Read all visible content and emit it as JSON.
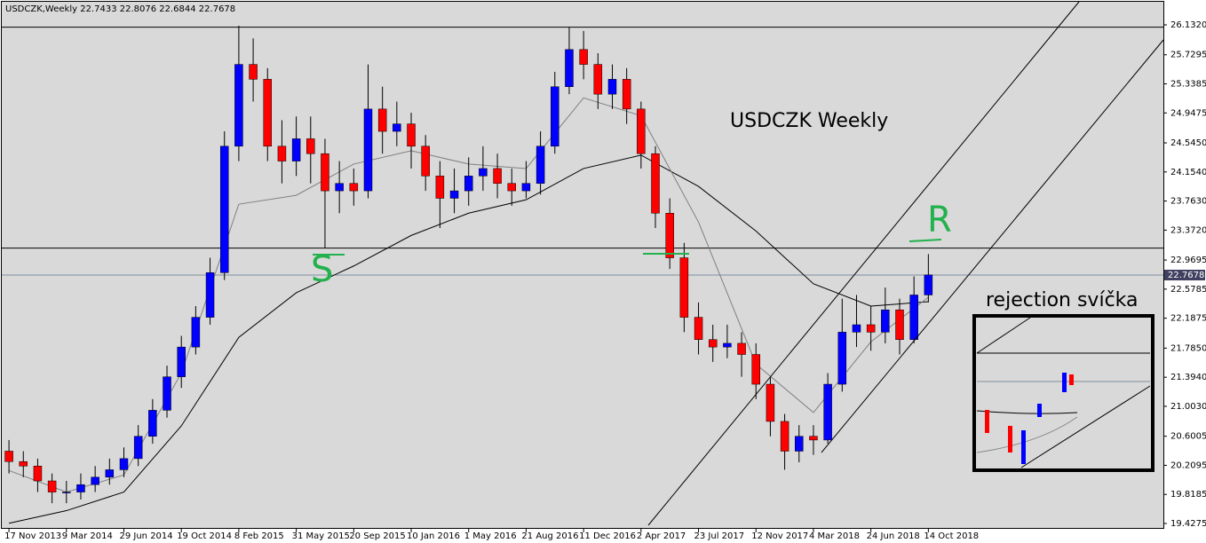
{
  "chart_data": {
    "type": "candlestick",
    "header": "USDCZK,Weekly  22.7433 22.8076 22.6844 22.7678",
    "title": "USDCZK Weekly",
    "annotations": {
      "support": "S",
      "resistance": "R",
      "inset": "rejection svíčka"
    },
    "open": [
      20.4,
      20.26,
      20.2,
      20.0,
      19.85,
      19.85,
      19.95,
      20.05,
      20.15,
      20.3,
      20.6,
      20.95,
      21.4,
      21.8,
      22.2,
      22.8,
      24.5,
      25.6,
      25.4,
      24.5,
      24.3,
      24.6,
      24.4,
      23.9,
      24.0,
      23.9,
      25.0,
      24.7,
      24.8,
      24.5,
      24.1,
      23.8,
      23.9,
      24.1,
      24.2,
      24.0,
      23.9,
      24.0,
      24.5,
      25.3,
      25.8,
      25.6,
      25.2,
      25.4,
      25.0,
      24.4,
      23.6,
      23.0,
      22.2,
      21.9,
      21.8,
      21.85,
      21.7,
      21.3,
      20.8,
      20.4,
      20.6,
      20.55,
      21.3,
      22.0,
      22.1,
      22.0,
      22.3,
      21.9,
      22.5
    ],
    "high": [
      20.55,
      20.4,
      20.3,
      20.1,
      20.0,
      20.1,
      20.2,
      20.3,
      20.45,
      20.75,
      21.1,
      21.55,
      21.95,
      22.35,
      23.0,
      24.7,
      26.12,
      25.95,
      25.55,
      24.85,
      24.9,
      24.9,
      24.6,
      24.3,
      24.2,
      25.6,
      25.3,
      25.1,
      24.95,
      24.65,
      24.3,
      24.2,
      24.35,
      24.5,
      24.4,
      24.2,
      24.3,
      24.7,
      25.5,
      26.1,
      26.05,
      25.75,
      25.6,
      25.55,
      25.1,
      24.5,
      23.8,
      23.2,
      22.4,
      22.1,
      22.1,
      22.0,
      21.85,
      21.4,
      20.9,
      20.75,
      20.75,
      21.45,
      22.45,
      22.5,
      22.35,
      22.6,
      22.45,
      22.75,
      23.05
    ],
    "low": [
      20.1,
      20.05,
      19.85,
      19.7,
      19.7,
      19.75,
      19.85,
      19.95,
      20.05,
      20.2,
      20.5,
      20.85,
      21.25,
      21.7,
      22.1,
      22.7,
      24.3,
      25.1,
      24.3,
      24.0,
      24.1,
      24.0,
      23.13,
      23.6,
      23.7,
      23.8,
      24.4,
      24.5,
      24.2,
      23.9,
      23.4,
      23.6,
      23.7,
      23.9,
      23.8,
      23.7,
      23.8,
      23.85,
      24.4,
      25.2,
      25.4,
      25.0,
      25.0,
      24.8,
      24.2,
      23.4,
      22.85,
      22.0,
      21.7,
      21.6,
      21.65,
      21.4,
      21.1,
      20.6,
      20.15,
      20.25,
      20.35,
      20.5,
      21.2,
      21.8,
      21.75,
      21.85,
      21.7,
      21.85,
      22.4
    ],
    "close": [
      20.26,
      20.2,
      20.0,
      19.85,
      19.85,
      19.95,
      20.05,
      20.15,
      20.3,
      20.6,
      20.95,
      21.4,
      21.8,
      22.2,
      22.8,
      24.5,
      25.6,
      25.4,
      24.5,
      24.3,
      24.6,
      24.4,
      23.9,
      24.0,
      23.9,
      25.0,
      24.7,
      24.8,
      24.5,
      24.1,
      23.8,
      23.9,
      24.1,
      24.2,
      24.0,
      23.9,
      24.0,
      24.5,
      25.3,
      25.8,
      25.6,
      25.2,
      25.4,
      25.0,
      24.4,
      23.6,
      23.0,
      22.2,
      21.9,
      21.8,
      21.85,
      21.7,
      21.3,
      20.8,
      20.4,
      20.6,
      20.55,
      21.3,
      22.0,
      22.1,
      22.0,
      22.3,
      21.9,
      22.5,
      22.77
    ],
    "up_color": "#0000ff",
    "down_color": "#ff0000",
    "overlays": [
      {
        "color": "#000000",
        "x": [
          0,
          4,
          8,
          12,
          16,
          20,
          24,
          28,
          32,
          36,
          40,
          44,
          48,
          52,
          56,
          60,
          64
        ],
        "values": [
          19.43,
          19.6,
          19.85,
          20.74,
          21.93,
          22.53,
          22.89,
          23.3,
          23.6,
          23.78,
          24.2,
          24.38,
          23.96,
          23.36,
          22.65,
          22.35,
          22.41
        ]
      },
      {
        "color": "#808080",
        "x": [
          0,
          4,
          8,
          12,
          16,
          20,
          24,
          28,
          32,
          36,
          40,
          44,
          48,
          52,
          56,
          60,
          64
        ],
        "values": [
          20.14,
          19.85,
          20.08,
          21.45,
          23.72,
          23.84,
          24.26,
          24.44,
          24.26,
          24.2,
          25.15,
          24.91,
          23.48,
          21.57,
          20.92,
          21.87,
          22.47
        ]
      }
    ],
    "hlines": [
      26.1,
      23.13
    ],
    "price": 22.7678,
    "xlim": [
      -0.5,
      80.36
    ],
    "ylim": [
      19.356,
      26.466
    ],
    "xticks": [
      {
        "value": 0,
        "label": "17 Nov 2013"
      },
      {
        "value": 4,
        "label": "9 Mar 2014"
      },
      {
        "value": 8,
        "label": "29 Jun 2014"
      },
      {
        "value": 12,
        "label": "19 Oct 2014"
      },
      {
        "value": 16,
        "label": "8 Feb 2015"
      },
      {
        "value": 20,
        "label": "31 May 2015"
      },
      {
        "value": 24,
        "label": "20 Sep 2015"
      },
      {
        "value": 28,
        "label": "10 Jan 2016"
      },
      {
        "value": 32,
        "label": "1 May 2016"
      },
      {
        "value": 36,
        "label": "21 Aug 2016"
      },
      {
        "value": 40,
        "label": "11 Dec 2016"
      },
      {
        "value": 44,
        "label": "2 Apr 2017"
      },
      {
        "value": 48,
        "label": "23 Jul 2017"
      },
      {
        "value": 52,
        "label": "12 Nov 2017"
      },
      {
        "value": 56,
        "label": "4 Mar 2018"
      },
      {
        "value": 60,
        "label": "24 Jun 2018"
      },
      {
        "value": 64,
        "label": "14 Oct 2018"
      }
    ],
    "yticks": [
      {
        "value": 26.132,
        "label": "26.1320"
      },
      25.7295,
      25.3385,
      24.9475,
      {
        "value": 24.545,
        "label": "24.5450"
      },
      {
        "value": 24.154,
        "label": "24.1540"
      },
      {
        "value": 23.763,
        "label": "23.7630"
      },
      {
        "value": 23.372,
        "label": "23.3720"
      },
      22.9695,
      22.5785,
      22.1875,
      {
        "value": 21.785,
        "label": "21.7850"
      },
      {
        "value": 21.394,
        "label": "21.3940"
      },
      {
        "value": 21.003,
        "label": "21.0030"
      },
      20.6005,
      20.2095,
      19.8185,
      19.4275
    ]
  }
}
